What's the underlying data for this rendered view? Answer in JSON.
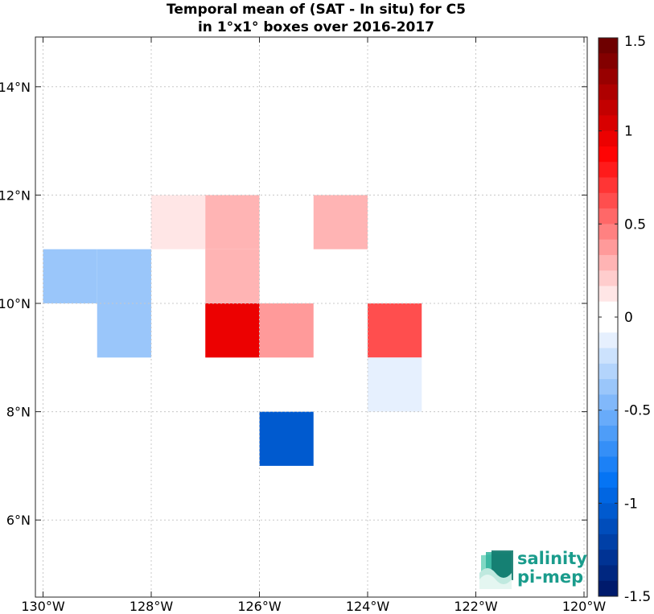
{
  "chart_data": {
    "type": "heatmap",
    "title": [
      "Temporal mean of (SAT - In situ) for C5",
      "in 1°x1° boxes over 2016-2017"
    ],
    "xlabel": "",
    "ylabel": "",
    "xlim": [
      -130,
      -120
    ],
    "ylim": [
      5,
      15
    ],
    "grid": true,
    "x_ticks": [
      {
        "value": -130,
        "label": "130°W"
      },
      {
        "value": -128,
        "label": "128°W"
      },
      {
        "value": -126,
        "label": "126°W"
      },
      {
        "value": -124,
        "label": "124°W"
      },
      {
        "value": -122,
        "label": "122°W"
      },
      {
        "value": -120,
        "label": "120°W"
      }
    ],
    "y_ticks": [
      {
        "value": 6,
        "label": "6°N"
      },
      {
        "value": 8,
        "label": "8°N"
      },
      {
        "value": 10,
        "label": "10°N"
      },
      {
        "value": 12,
        "label": "12°N"
      },
      {
        "value": 14,
        "label": "14°N"
      }
    ],
    "cells": [
      {
        "lon": -130,
        "lat": 10,
        "value": -0.4
      },
      {
        "lon": -129,
        "lat": 10,
        "value": -0.4
      },
      {
        "lon": -129,
        "lat": 9,
        "value": -0.4
      },
      {
        "lon": -128,
        "lat": 11,
        "value": 0.15
      },
      {
        "lon": -127,
        "lat": 11,
        "value": 0.3
      },
      {
        "lon": -127,
        "lat": 10,
        "value": 0.3
      },
      {
        "lon": -127,
        "lat": 9,
        "value": 0.95
      },
      {
        "lon": -126,
        "lat": 9,
        "value": 0.4
      },
      {
        "lon": -126,
        "lat": 7,
        "value": -1.0
      },
      {
        "lon": -125,
        "lat": 11,
        "value": 0.3
      },
      {
        "lon": -124,
        "lat": 9,
        "value": 0.6
      },
      {
        "lon": -124,
        "lat": 8,
        "value": -0.15
      }
    ],
    "colorbar": {
      "range": [
        -1.5,
        1.5
      ],
      "levels": 36,
      "ticks": [
        {
          "value": 1.5,
          "label": "1.5"
        },
        {
          "value": 1,
          "label": "1"
        },
        {
          "value": 0.5,
          "label": "0.5"
        },
        {
          "value": 0,
          "label": "0"
        },
        {
          "value": -0.5,
          "label": "-0.5"
        },
        {
          "value": -1,
          "label": "-1"
        },
        {
          "value": -1.5,
          "label": "-1.5"
        }
      ],
      "colors_high": [
        "#ffffff",
        "#ffdcdc",
        "#ffb8b8",
        "#ff9494",
        "#ff7070",
        "#ff4c4c",
        "#ff2828",
        "#ff0404",
        "#e60000",
        "#c80000",
        "#aa0000",
        "#8c0000",
        "#6e0000"
      ],
      "colors_low": [
        "#ffffff",
        "#dbeafd",
        "#b7d6fc",
        "#94c3fa",
        "#70affa",
        "#4c9cf8",
        "#2888f7",
        "#0575f5",
        "#0062dc",
        "#0050c0",
        "#003ea4",
        "#002c88",
        "#001a6c"
      ]
    }
  },
  "logo": {
    "line1": "salinity",
    "line2": "pi-mep"
  }
}
